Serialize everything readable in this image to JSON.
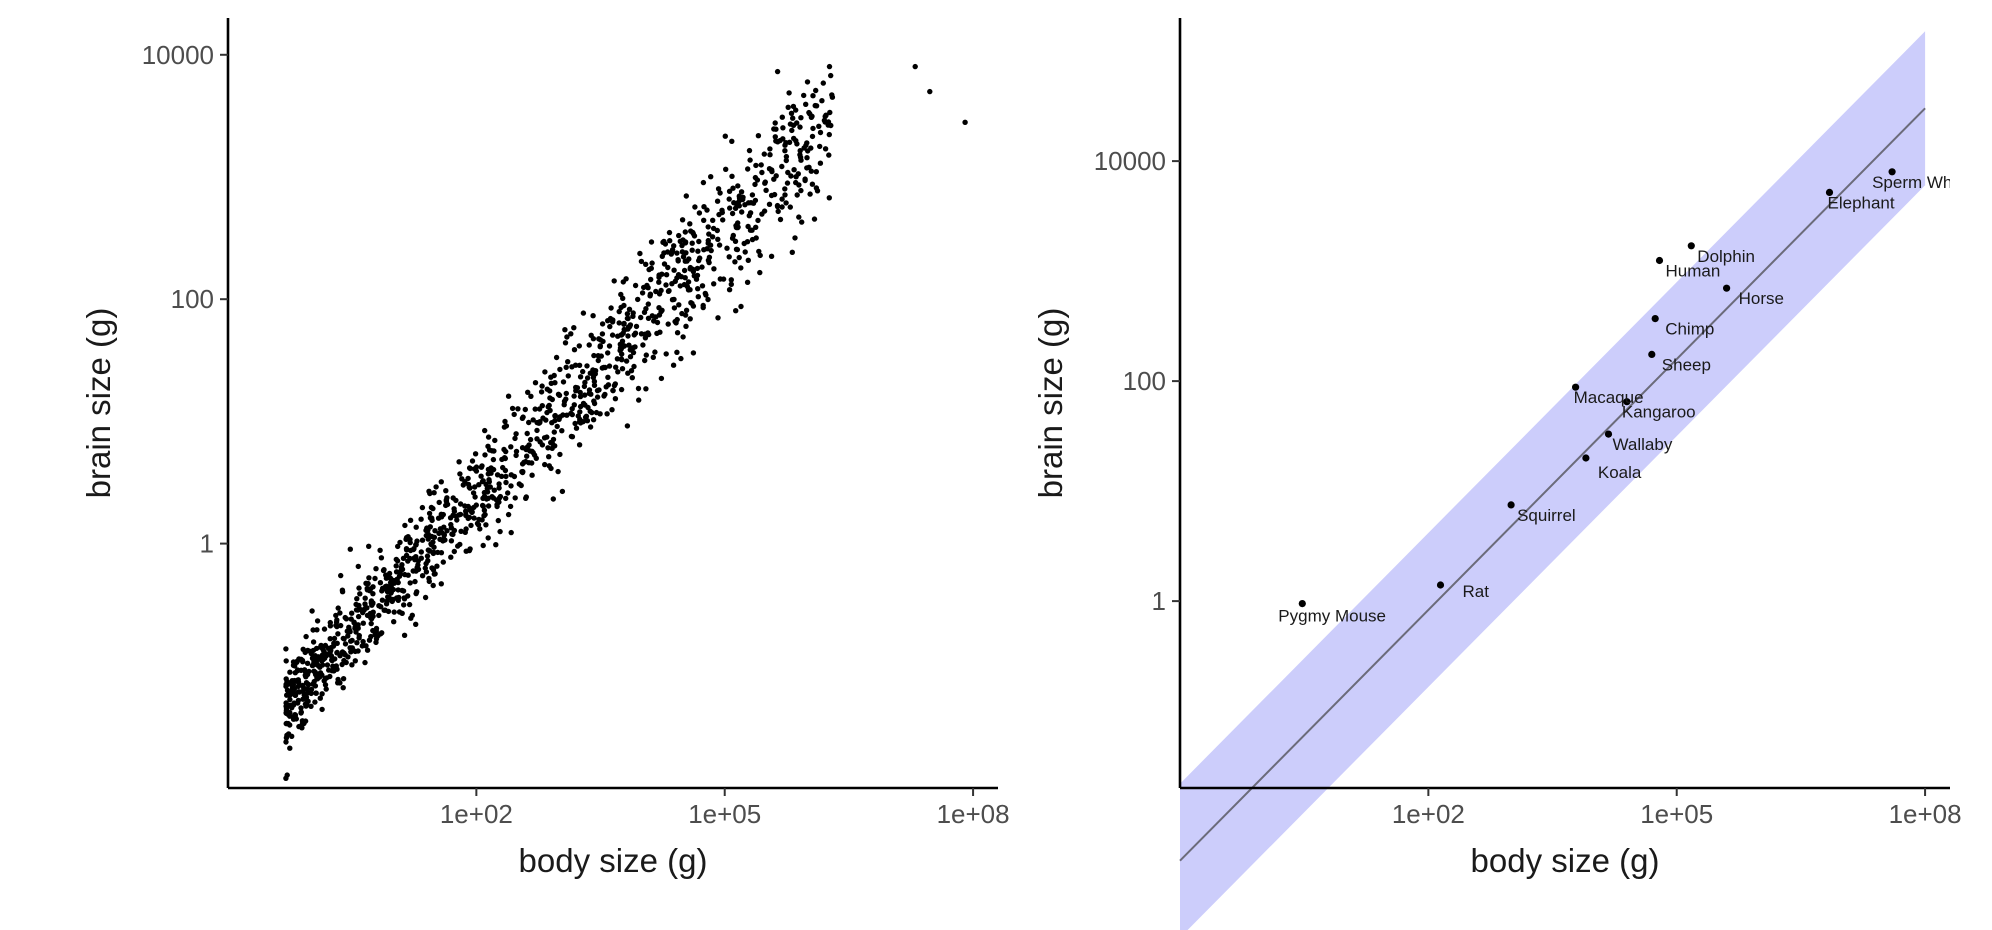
{
  "chart_data": [
    {
      "type": "scatter",
      "title": "",
      "xlabel": "body size (g)",
      "ylabel": "brain size (g)",
      "x_scale": "log10",
      "y_scale": "log10",
      "xlim": [
        0.1,
        200000000
      ],
      "ylim": [
        0.01,
        20000
      ],
      "x_ticks": [
        {
          "value": 100,
          "label": "1e+02"
        },
        {
          "value": 100000,
          "label": "1e+05"
        },
        {
          "value": 100000000,
          "label": "1e+08"
        }
      ],
      "y_ticks": [
        {
          "value": 1,
          "label": "1"
        },
        {
          "value": 100,
          "label": "100"
        },
        {
          "value": 10000,
          "label": "10000"
        }
      ],
      "grid": false,
      "cloud": {
        "n_points": 1350,
        "description_of_trend": "dense cloud of species following roughly brain ≈ 0.08 × body^0.73 on log-log axes",
        "x_range": [
          0.5,
          100000000
        ],
        "y_range": [
          0.012,
          8000
        ],
        "slope": 0.73,
        "intercept_log10": -1.1,
        "residual_sd_log10": 0.28
      },
      "notable_points": [
        {
          "x": 0.5,
          "y": 0.012
        },
        {
          "x": 3,
          "y": 0.9
        },
        {
          "x": 5,
          "y": 0.95
        },
        {
          "x": 20000000,
          "y": 8000
        },
        {
          "x": 30000000,
          "y": 5000
        },
        {
          "x": 80000000,
          "y": 2800
        },
        {
          "x": 1000000,
          "y": 6000
        },
        {
          "x": 2000000,
          "y": 4500
        }
      ]
    },
    {
      "type": "scatter",
      "title": "",
      "xlabel": "body size (g)",
      "ylabel": "brain size (g)",
      "x_scale": "log10",
      "y_scale": "log10",
      "xlim": [
        0.1,
        200000000
      ],
      "ylim": [
        0.02,
        200000
      ],
      "x_ticks": [
        {
          "value": 100,
          "label": "1e+02"
        },
        {
          "value": 100000,
          "label": "1e+05"
        },
        {
          "value": 100000000,
          "label": "1e+08"
        }
      ],
      "y_ticks": [
        {
          "value": 1,
          "label": "1"
        },
        {
          "value": 100,
          "label": "100"
        },
        {
          "value": 10000,
          "label": "10000"
        }
      ],
      "grid": false,
      "regression": {
        "x_range": [
          0.1,
          100000000
        ],
        "intercept_log10": -1.6,
        "slope": 0.76,
        "band_half_width_log10": 0.7,
        "line_color": "#6b6b7a",
        "band_color": "#cccdfb"
      },
      "points": [
        {
          "label": "Pygmy Mouse",
          "x": 3,
          "y": 0.95
        },
        {
          "label": "Rat",
          "x": 140,
          "y": 1.4
        },
        {
          "label": "Squirrel",
          "x": 1000,
          "y": 7.5
        },
        {
          "label": "Macaque",
          "x": 6000,
          "y": 88
        },
        {
          "label": "Kangaroo",
          "x": 25000,
          "y": 65
        },
        {
          "label": "Wallaby",
          "x": 15000,
          "y": 33
        },
        {
          "label": "Koala",
          "x": 8000,
          "y": 20
        },
        {
          "label": "Sheep",
          "x": 50000,
          "y": 175
        },
        {
          "label": "Chimp",
          "x": 55000,
          "y": 370
        },
        {
          "label": "Human",
          "x": 62000,
          "y": 1250
        },
        {
          "label": "Dolphin",
          "x": 150000,
          "y": 1700
        },
        {
          "label": "Horse",
          "x": 400000,
          "y": 700
        },
        {
          "label": "Elephant",
          "x": 7000000,
          "y": 5200
        },
        {
          "label": "Sperm Whale",
          "x": 40000000,
          "y": 8000
        }
      ]
    }
  ]
}
